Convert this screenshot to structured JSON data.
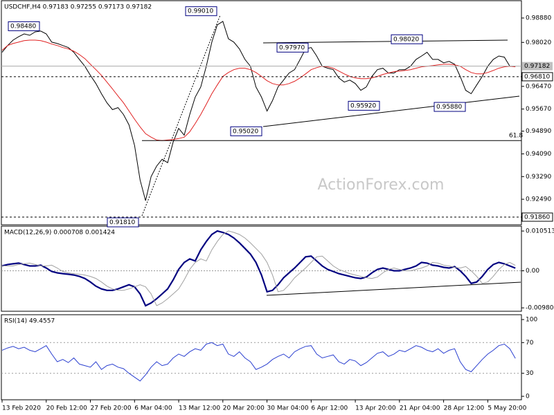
{
  "chart_data": [
    {
      "type": "line",
      "title": "USDCHF,H4  0.97183 0.97255 0.97173 0.97182",
      "watermark": "ActionForex.com",
      "categories": [
        "13 Feb 2020",
        null,
        null,
        null,
        null,
        null,
        null,
        null,
        "20 Feb 12:00",
        null,
        null,
        null,
        null,
        null,
        null,
        null,
        "27 Feb 20:00",
        null,
        null,
        null,
        null,
        null,
        null,
        null,
        "6 Mar 04:00",
        null,
        null,
        null,
        null,
        null,
        null,
        null,
        "13 Mar 12:00",
        null,
        null,
        null,
        null,
        null,
        null,
        null,
        "20 Mar 20:00",
        null,
        null,
        null,
        null,
        null,
        null,
        null,
        "30 Mar 04:00",
        null,
        null,
        null,
        null,
        null,
        null,
        null,
        "6 Apr 12:00",
        null,
        null,
        null,
        null,
        null,
        null,
        null,
        "13 Apr 20:00",
        null,
        null,
        null,
        null,
        null,
        null,
        null,
        "21 Apr 04:00",
        null,
        null,
        null,
        null,
        null,
        null,
        null,
        "28 Apr 12:00",
        null,
        null,
        null,
        null,
        null,
        null,
        null,
        "5 May 20:00",
        null,
        null,
        null,
        null,
        null
      ],
      "series": [
        {
          "color": "#000000",
          "values": [
            0.9767,
            0.9791,
            0.981,
            0.9822,
            0.9832,
            0.9827,
            0.9839,
            0.9842,
            0.9832,
            0.9803,
            0.9798,
            0.9791,
            0.9784,
            0.9767,
            0.9742,
            0.9718,
            0.9686,
            0.9657,
            0.9621,
            0.9589,
            0.9565,
            0.9572,
            0.9548,
            0.9511,
            0.9439,
            0.9317,
            0.9244,
            0.9329,
            0.9366,
            0.939,
            0.9378,
            0.9451,
            0.9499,
            0.9475,
            0.9548,
            0.9609,
            0.9645,
            0.9718,
            0.9803,
            0.9864,
            0.9876,
            0.9815,
            0.9803,
            0.9779,
            0.9742,
            0.9718,
            0.9645,
            0.9609,
            0.956,
            0.9597,
            0.9645,
            0.9669,
            0.9694,
            0.9706,
            0.9742,
            0.9779,
            0.9784,
            0.9754,
            0.9718,
            0.9711,
            0.9706,
            0.9677,
            0.9662,
            0.9669,
            0.9657,
            0.9633,
            0.9645,
            0.9682,
            0.9706,
            0.9711,
            0.9694,
            0.9694,
            0.9706,
            0.9706,
            0.9718,
            0.9742,
            0.9754,
            0.9767,
            0.9742,
            0.9742,
            0.973,
            0.9735,
            0.9725,
            0.9682,
            0.9633,
            0.9621,
            0.9652,
            0.9682,
            0.9718,
            0.9742,
            0.9754,
            0.975,
            0.9718,
            0.97182
          ]
        },
        {
          "color": "#e02020",
          "values": [
            0.9774,
            0.9791,
            0.9798,
            0.9803,
            0.9808,
            0.981,
            0.981,
            0.9808,
            0.9803,
            0.9796,
            0.9791,
            0.9784,
            0.9779,
            0.9771,
            0.9759,
            0.9745,
            0.9725,
            0.9706,
            0.9686,
            0.9662,
            0.9638,
            0.9613,
            0.9589,
            0.956,
            0.9531,
            0.9504,
            0.948,
            0.9468,
            0.9458,
            0.9456,
            0.9458,
            0.946,
            0.9463,
            0.9468,
            0.9487,
            0.9516,
            0.9548,
            0.9584,
            0.9621,
            0.9652,
            0.9682,
            0.9696,
            0.9706,
            0.9711,
            0.9711,
            0.9706,
            0.9696,
            0.9682,
            0.9667,
            0.9657,
            0.9652,
            0.9652,
            0.9657,
            0.9665,
            0.9677,
            0.9691,
            0.9706,
            0.9713,
            0.9718,
            0.9716,
            0.9711,
            0.9701,
            0.9691,
            0.9682,
            0.9677,
            0.9674,
            0.9674,
            0.9677,
            0.9682,
            0.9689,
            0.9694,
            0.9699,
            0.9701,
            0.9703,
            0.9706,
            0.9711,
            0.9716,
            0.9718,
            0.972,
            0.9723,
            0.9725,
            0.9725,
            0.9723,
            0.9718,
            0.9706,
            0.9696,
            0.9691,
            0.9691,
            0.9696,
            0.9703,
            0.9711,
            0.9716,
            0.9718,
            0.9716
          ]
        }
      ],
      "ylim": [
        0.9159,
        0.9949
      ],
      "yticks": [
        {
          "value": 0.9888,
          "label": "0.98880"
        },
        {
          "value": 0.9802,
          "label": "0.98020"
        },
        {
          "value": 0.9647,
          "label": "0.96470"
        },
        {
          "value": 0.9567,
          "label": "0.95670"
        },
        {
          "value": 0.9489,
          "label": "0.94890"
        },
        {
          "value": 0.9409,
          "label": "0.94090"
        },
        {
          "value": 0.9329,
          "label": "0.93290"
        },
        {
          "value": 0.9249,
          "label": "0.92490"
        }
      ],
      "last_price": 0.97182,
      "levels": [
        {
          "value": 0.9681,
          "label": "0.96810"
        },
        {
          "value": 0.9186,
          "label": "0.91860"
        }
      ],
      "fib_level": 0.9456,
      "fib_label": "61.8",
      "price_labels": [
        {
          "value": 0.9848,
          "label": "0.98480"
        },
        {
          "value": 0.9901,
          "label": "0.99010"
        },
        {
          "value": 0.9797,
          "label": "0.97970"
        },
        {
          "value": 0.9802,
          "label": "0.98020"
        },
        {
          "value": 0.9592,
          "label": "0.95920"
        },
        {
          "value": 0.9588,
          "label": "0.95880"
        },
        {
          "value": 0.9502,
          "label": "0.95020"
        },
        {
          "value": 0.9181,
          "label": "0.91810"
        }
      ]
    },
    {
      "type": "line",
      "title": "MACD(12,26,9) 0.000708 0.001424",
      "series": [
        {
          "color": "#000080",
          "values": [
            0.00129,
            0.00166,
            0.00185,
            0.00203,
            0.00166,
            0.00129,
            0.00129,
            0.00148,
            0.00074,
            -0.00018,
            -0.00055,
            -0.00074,
            -0.00092,
            -0.00111,
            -0.00148,
            -0.00203,
            -0.00296,
            -0.00406,
            -0.0048,
            -0.00517,
            -0.00517,
            -0.0048,
            -0.00425,
            -0.00369,
            -0.00425,
            -0.0061,
            -0.00924,
            -0.0085,
            -0.00739,
            -0.0061,
            -0.0048,
            -0.0024,
            0.00037,
            0.00222,
            0.00314,
            0.00259,
            0.00554,
            0.00776,
            0.0096,
            0.01053,
            0.01016,
            0.0096,
            0.00868,
            0.00739,
            0.00591,
            0.00443,
            0.00222,
            -0.00111,
            -0.00554,
            -0.00517,
            -0.00369,
            -0.00185,
            -0.00055,
            0.00074,
            0.00222,
            0.00369,
            0.00388,
            0.00259,
            0.00129,
            0.00037,
            -0.00018,
            -0.00074,
            -0.00111,
            -0.00148,
            -0.00185,
            -0.00203,
            -0.00166,
            -0.00055,
            0.00037,
            0.00074,
            0.00037,
            0,
            0,
            0.00037,
            0.00074,
            0.00129,
            0.00222,
            0.00203,
            0.00148,
            0.00129,
            0.00092,
            0.00074,
            0.00111,
            0,
            -0.00148,
            -0.00332,
            -0.00296,
            -0.00148,
            0.00037,
            0.00166,
            0.00222,
            0.00185,
            0.00129,
            0.00071
          ]
        },
        {
          "color": "#a0a0a0",
          "values": [
            0.00129,
            0.00129,
            0.00129,
            0.00166,
            0.00185,
            0.00203,
            0.00166,
            0.00129,
            0.00129,
            0.00148,
            0.00074,
            -0.00018,
            -0.00055,
            -0.00074,
            -0.00092,
            -0.00111,
            -0.00148,
            -0.00203,
            -0.00296,
            -0.00406,
            -0.0048,
            -0.00517,
            -0.00517,
            -0.0048,
            -0.00425,
            -0.00369,
            -0.00425,
            -0.0061,
            -0.00924,
            -0.0085,
            -0.00739,
            -0.0061,
            -0.0048,
            -0.0024,
            0.00037,
            0.00222,
            0.00314,
            0.00259,
            0.00554,
            0.00776,
            0.0096,
            0.01053,
            0.01016,
            0.0096,
            0.00868,
            0.00739,
            0.00591,
            0.00443,
            0.00222,
            -0.00111,
            -0.00554,
            -0.00517,
            -0.00369,
            -0.00185,
            -0.00055,
            0.00074,
            0.00222,
            0.00369,
            0.00388,
            0.00259,
            0.00129,
            0.00037,
            -0.00018,
            -0.00074,
            -0.00111,
            -0.00148,
            -0.00185,
            -0.00203,
            -0.00166,
            -0.00055,
            0.00037,
            0.00074,
            0.00037,
            0,
            0,
            0.00037,
            0.00074,
            0.00129,
            0.00222,
            0.00203,
            0.00148,
            0.00129,
            0.00092,
            0.00074,
            0.00111,
            0,
            -0.00148,
            -0.00332,
            -0.00296,
            -0.00148,
            0.00037,
            0.00166,
            0.00222,
            0.00142
          ]
        }
      ],
      "ylim": [
        -0.0107,
        0.0118
      ],
      "yticks": [
        0.010513,
        {
          "value": 0,
          "label": "0.00"
        },
        -0.009804
      ]
    },
    {
      "type": "line",
      "title": "RSI(14) 49.4557",
      "series": [
        {
          "color": "#2a3fd0",
          "values": [
            60,
            63,
            65,
            62,
            64,
            60,
            58,
            62,
            66,
            55,
            45,
            48,
            44,
            50,
            42,
            40,
            38,
            45,
            35,
            40,
            42,
            38,
            36,
            30,
            25,
            20,
            28,
            38,
            45,
            40,
            42,
            50,
            55,
            52,
            58,
            62,
            60,
            68,
            70,
            66,
            68,
            55,
            52,
            58,
            50,
            45,
            35,
            38,
            42,
            48,
            52,
            55,
            50,
            58,
            62,
            65,
            66,
            55,
            50,
            52,
            54,
            45,
            42,
            48,
            46,
            40,
            44,
            50,
            56,
            58,
            52,
            55,
            60,
            58,
            62,
            66,
            64,
            60,
            58,
            62,
            56,
            60,
            62,
            45,
            35,
            32,
            40,
            48,
            55,
            60,
            66,
            68,
            62,
            49.4557
          ]
        }
      ],
      "ylim": [
        -4.5,
        106.3
      ],
      "yticks": [
        100,
        70,
        30,
        0
      ],
      "gridticks": [
        70,
        30
      ]
    }
  ]
}
